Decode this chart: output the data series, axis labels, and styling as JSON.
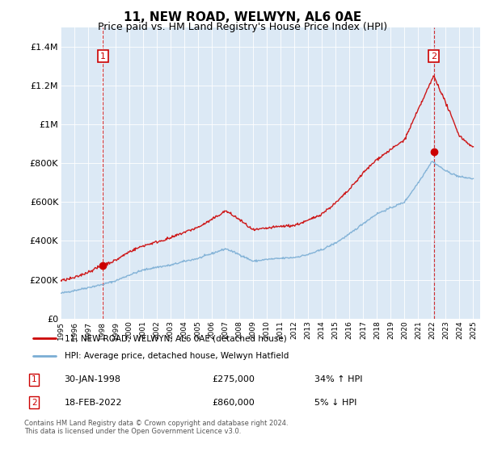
{
  "title": "11, NEW ROAD, WELWYN, AL6 0AE",
  "subtitle": "Price paid vs. HM Land Registry's House Price Index (HPI)",
  "title_fontsize": 11,
  "subtitle_fontsize": 9,
  "background_color": "#dce9f5",
  "outer_bg_color": "#ffffff",
  "red_color": "#cc0000",
  "blue_color": "#7aadd4",
  "ylim": [
    0,
    1500000
  ],
  "yticks": [
    0,
    200000,
    400000,
    600000,
    800000,
    1000000,
    1200000,
    1400000
  ],
  "ytick_labels": [
    "£0",
    "£200K",
    "£400K",
    "£600K",
    "£800K",
    "£1M",
    "£1.2M",
    "£1.4M"
  ],
  "xmin_year": 1995.0,
  "xmax_year": 2025.5,
  "xticks": [
    1995,
    1996,
    1997,
    1998,
    1999,
    2000,
    2001,
    2002,
    2003,
    2004,
    2005,
    2006,
    2007,
    2008,
    2009,
    2010,
    2011,
    2012,
    2013,
    2014,
    2015,
    2016,
    2017,
    2018,
    2019,
    2020,
    2021,
    2022,
    2023,
    2024,
    2025
  ],
  "ann1_x": 1998.08,
  "ann1_y": 275000,
  "ann2_x": 2022.13,
  "ann2_y": 860000,
  "legend_label1": "11, NEW ROAD, WELWYN, AL6 0AE (detached house)",
  "legend_label2": "HPI: Average price, detached house, Welwyn Hatfield",
  "table_row1_label": "1",
  "table_row1_date": "30-JAN-1998",
  "table_row1_price": "£275,000",
  "table_row1_pct": "34% ↑ HPI",
  "table_row2_label": "2",
  "table_row2_date": "18-FEB-2022",
  "table_row2_price": "£860,000",
  "table_row2_pct": "5% ↓ HPI",
  "footer": "Contains HM Land Registry data © Crown copyright and database right 2024.\nThis data is licensed under the Open Government Licence v3.0."
}
